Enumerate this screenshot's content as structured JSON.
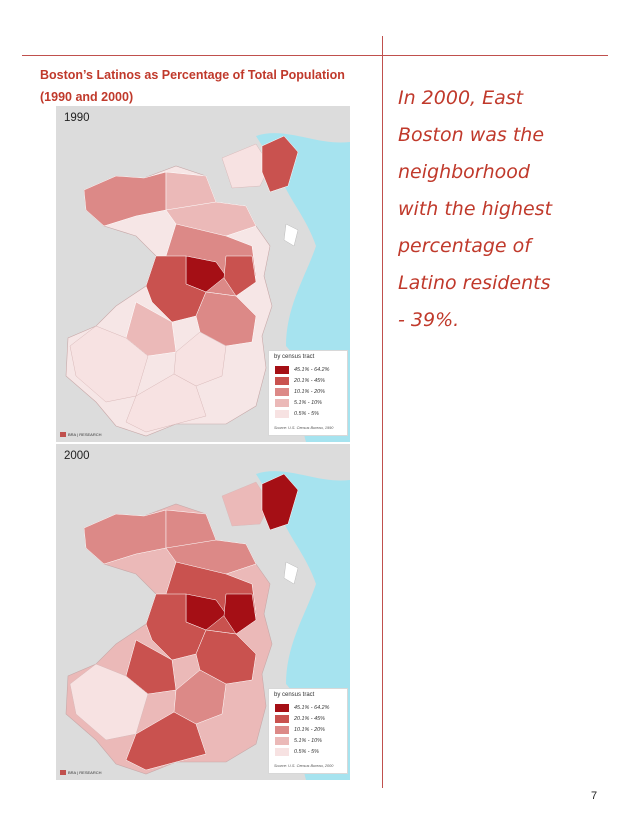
{
  "title_line1": "Boston’s Latinos as Percentage of Total Population",
  "title_line2": "(1990 and 2000)",
  "quote_lines": [
    "In 2000, East",
    "Boston was the",
    "neighborhood",
    "with the highest",
    "percentage of",
    "Latino residents",
    "- 39%."
  ],
  "page_number": "7",
  "legend_colors": [
    "#a50f15",
    "#c9524f",
    "#dc8987",
    "#ebb9b8",
    "#f7e2e2"
  ],
  "maps": [
    {
      "year": "1990",
      "legend_title": "by census tract",
      "legend_items": [
        "45.1% - 64.2%",
        "20.1% - 45%",
        "10.1% - 20%",
        "5.1% - 10%",
        "0.5% - 5%"
      ],
      "source": "Source: U.S. Census Bureau, 1990",
      "bra_label": "BRA | RESEARCH"
    },
    {
      "year": "2000",
      "legend_title": "by census tract",
      "legend_items": [
        "45.1% - 64.2%",
        "20.1% - 45%",
        "10.1% - 20%",
        "5.1% - 10%",
        "0.5% - 5%"
      ],
      "source": "Source: U.S. Census Bureau, 2000",
      "bra_label": "BRA | RESEARCH"
    }
  ]
}
